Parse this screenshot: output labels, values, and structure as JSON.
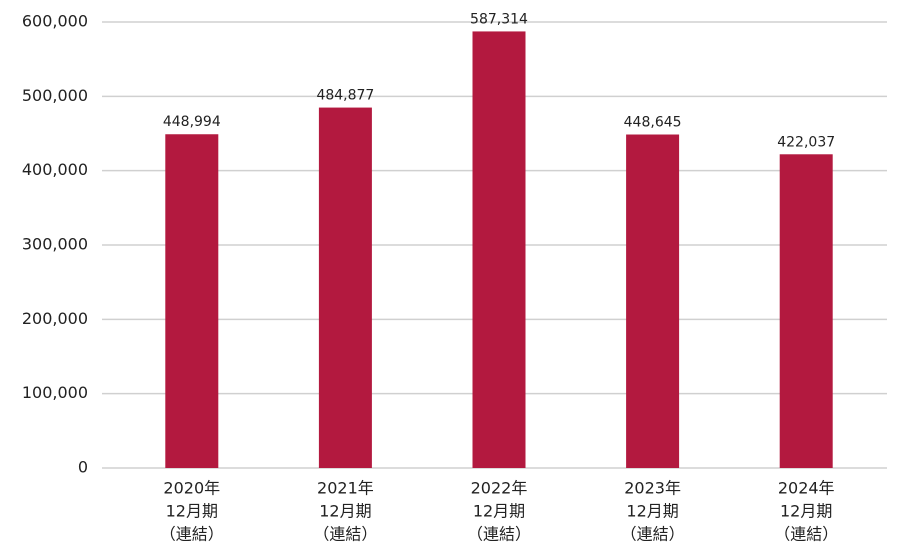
{
  "chart_data": {
    "type": "bar",
    "categories": [
      [
        "2020年",
        "12月期",
        "（連結）"
      ],
      [
        "2021年",
        "12月期",
        "（連結）"
      ],
      [
        "2022年",
        "12月期",
        "（連結）"
      ],
      [
        "2023年",
        "12月期",
        "（連結）"
      ],
      [
        "2024年",
        "12月期",
        "（連結）"
      ]
    ],
    "values": [
      448994,
      484877,
      587314,
      448645,
      422037
    ],
    "value_labels": [
      "448,994",
      "484,877",
      "587,314",
      "448,645",
      "422,037"
    ],
    "color": "#b3193f",
    "ylim": [
      0,
      600000
    ],
    "yticks": [
      0,
      {
        "value": 100000,
        "label": "100,000"
      },
      {
        "value": 200000,
        "label": "200,000"
      },
      {
        "value": 300000,
        "label": "300,000"
      },
      {
        "value": 400000,
        "label": "400,000"
      },
      {
        "value": 500000,
        "label": "500,000"
      },
      {
        "value": 600000,
        "label": "600,000"
      }
    ],
    "grid": true
  }
}
